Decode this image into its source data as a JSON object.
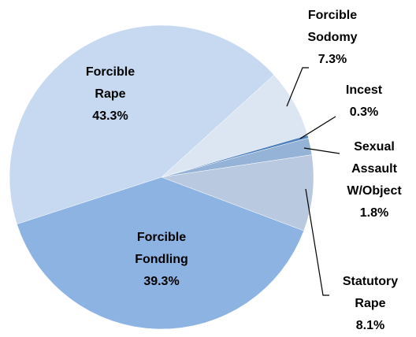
{
  "chart_data": {
    "type": "pie",
    "categories": [
      "Forcible Rape",
      "Forcible Sodomy",
      "Incest",
      "Sexual Assault W/Object",
      "Statutory Rape",
      "Forcible Fondling"
    ],
    "values": [
      43.3,
      7.3,
      0.3,
      1.8,
      8.1,
      39.3
    ],
    "value_labels": [
      "43.3%",
      "7.3%",
      "0.3%",
      "1.8%",
      "8.1%",
      "39.3%"
    ],
    "colors": [
      "#c6d9f1",
      "#dce6f2",
      "#4f81bd",
      "#95b3d7",
      "#b9c9df",
      "#8db3e2"
    ]
  }
}
